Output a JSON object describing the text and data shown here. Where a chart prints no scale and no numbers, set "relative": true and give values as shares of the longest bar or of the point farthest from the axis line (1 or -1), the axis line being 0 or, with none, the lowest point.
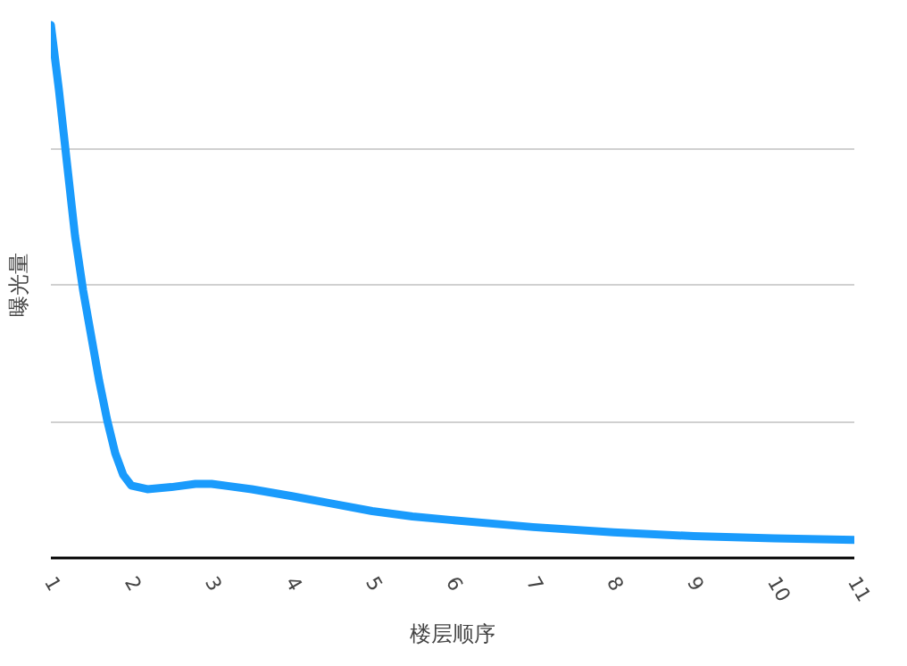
{
  "chart_data": {
    "type": "line",
    "relative": true,
    "xlabel": "楼层顺序",
    "ylabel": "曝光量",
    "x": [
      1,
      1.1,
      1.2,
      1.3,
      1.4,
      1.5,
      1.6,
      1.7,
      1.8,
      1.9,
      2,
      2.2,
      2.5,
      2.8,
      3,
      3.5,
      4,
      4.5,
      5,
      5.5,
      6,
      7,
      8,
      9,
      10,
      11
    ],
    "xlim": [
      1,
      11
    ],
    "xticks": [
      1,
      2,
      3,
      4,
      5,
      6,
      7,
      8,
      9,
      10,
      11
    ],
    "series": [
      {
        "color": "#1a9bfc",
        "values": [
          1,
          0.878,
          0.741,
          0.605,
          0.503,
          0.418,
          0.333,
          0.259,
          0.197,
          0.156,
          0.136,
          0.129,
          0.133,
          0.139,
          0.139,
          0.129,
          0.116,
          0.102,
          0.088,
          0.078,
          0.071,
          0.058,
          0.048,
          0.041,
          0.037,
          0.034
        ]
      }
    ],
    "grid": "y",
    "marker": "none",
    "line_style": "solid"
  }
}
